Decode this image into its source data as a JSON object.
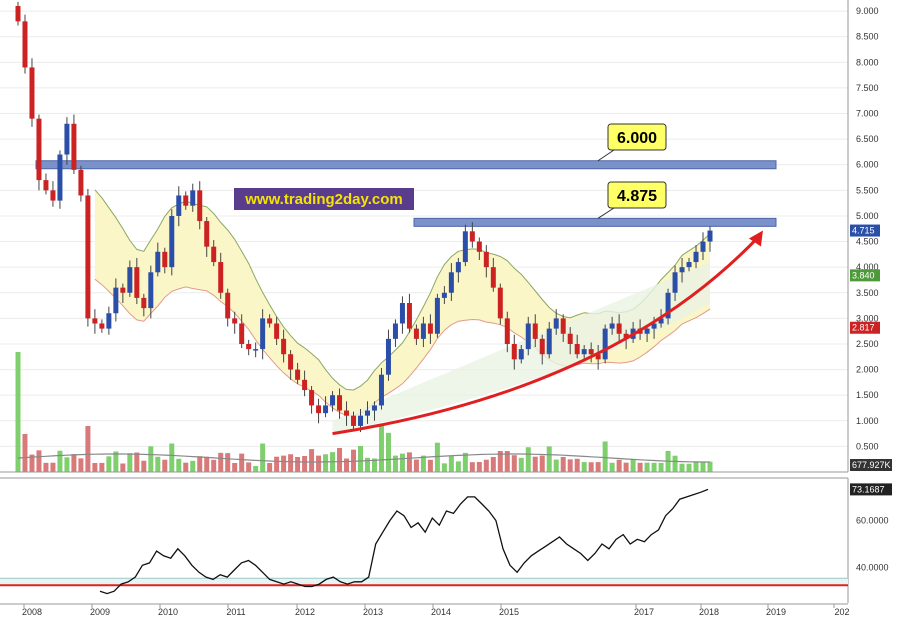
{
  "watermark": "www.trading2day.com",
  "colors": {
    "up": "#2b4fa8",
    "down": "#cc2222",
    "volume_up": "#7fcf6f",
    "volume_down": "#d97a7a",
    "band_fill": "#fbf6c8",
    "band_upper": "#8aa861",
    "band_lower": "#e29a8a",
    "trend_arrow": "#e02020",
    "resistance": "#6d86c4",
    "callout": "#ffff66",
    "rsi_line": "#111111",
    "rsi_ref": "#dd2222"
  },
  "chart_data": [
    {
      "type": "candlestick",
      "x_axis": {
        "ticks": [
          "2008",
          "2009",
          "2010",
          "2011",
          "2012",
          "2013",
          "2014",
          "2015",
          "2017",
          "2018",
          "2019",
          "202"
        ]
      },
      "y_axis": {
        "ticks": [
          "0.500",
          "1.000",
          "1.500",
          "2.000",
          "2.500",
          "3.000",
          "3.500",
          "4.000",
          "4.500",
          "5.000",
          "5.500",
          "6.000",
          "6.500",
          "7.000",
          "7.500",
          "8.000",
          "8.500",
          "9.000"
        ],
        "ylim": [
          0,
          9.1
        ]
      },
      "series_close": [
        8.8,
        7.9,
        6.9,
        5.7,
        5.5,
        5.3,
        6.2,
        6.8,
        5.9,
        5.4,
        3.0,
        2.9,
        2.8,
        3.1,
        3.6,
        3.5,
        4.0,
        3.4,
        3.2,
        3.9,
        4.3,
        4.0,
        5.0,
        5.4,
        5.2,
        5.5,
        4.9,
        4.4,
        4.1,
        3.5,
        3.0,
        2.9,
        2.5,
        2.4,
        2.4,
        3.0,
        2.9,
        2.6,
        2.3,
        2.0,
        1.8,
        1.6,
        1.3,
        1.15,
        1.3,
        1.5,
        1.2,
        1.1,
        0.9,
        1.1,
        1.2,
        1.3,
        1.9,
        2.6,
        2.9,
        3.3,
        2.8,
        2.6,
        2.9,
        2.7,
        3.4,
        3.5,
        3.9,
        4.1,
        4.7,
        4.5,
        4.3,
        4.0,
        3.6,
        3.0,
        2.5,
        2.2,
        2.4,
        2.9,
        2.6,
        2.3,
        2.8,
        3.0,
        2.7,
        2.5,
        2.3,
        2.4,
        2.3,
        2.2,
        2.8,
        2.9,
        2.7,
        2.6,
        2.8,
        2.7,
        2.8,
        2.9,
        3.0,
        3.5,
        3.9,
        4.0,
        4.1,
        4.3,
        4.5,
        4.715
      ],
      "price_labels": {
        "last": "4.715",
        "band_upper": "3.840",
        "band_lower": "2.817"
      },
      "resistance_levels": [
        {
          "value": 6.0,
          "label": "6.000"
        },
        {
          "value": 4.875,
          "label": "4.875"
        }
      ],
      "volume": {
        "last_label": "677.927K"
      }
    },
    {
      "type": "line",
      "name": "indicator",
      "y_axis": {
        "ticks": [
          "40.0000",
          "60.0000"
        ],
        "ylim": [
          25,
          78
        ]
      },
      "reference_lines": [
        32.5,
        35.5
      ],
      "last_label": "73.1687",
      "values": [
        30,
        29,
        30,
        33,
        34,
        36,
        41,
        42,
        47,
        45,
        44,
        48,
        45,
        41,
        38,
        36,
        35,
        37,
        36,
        39,
        42,
        43,
        41,
        38,
        35,
        34,
        33,
        34,
        33,
        32,
        32,
        33,
        35,
        36,
        34,
        33,
        34,
        34,
        36,
        50,
        55,
        60,
        64,
        62,
        57,
        59,
        55,
        61,
        58,
        64,
        63,
        67,
        70,
        70,
        67,
        64,
        60,
        48,
        41,
        38,
        42,
        45,
        47,
        49,
        51,
        53,
        50,
        48,
        46,
        43,
        46,
        50,
        48,
        52,
        54,
        50,
        52,
        51,
        54,
        56,
        62,
        65,
        69,
        70,
        71,
        72,
        73.17
      ]
    }
  ]
}
